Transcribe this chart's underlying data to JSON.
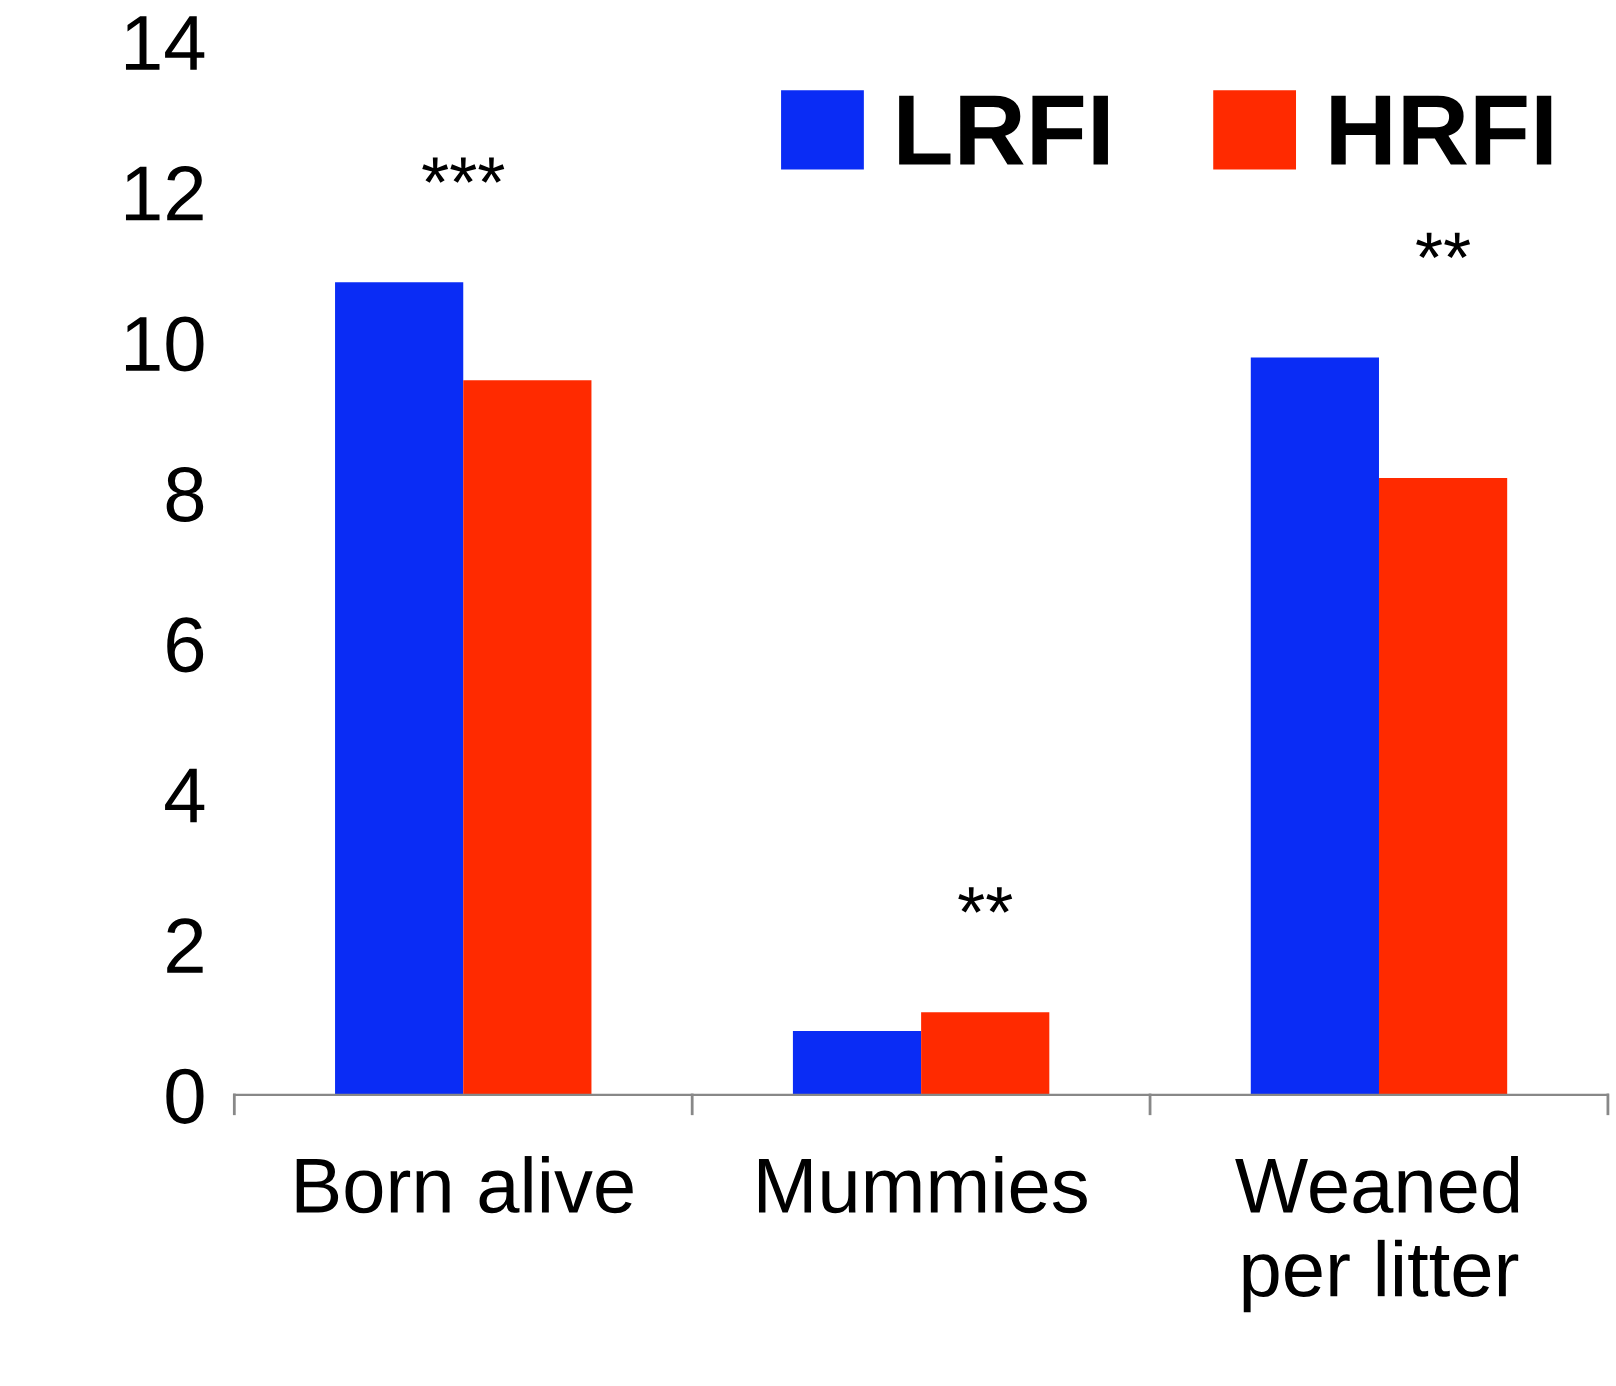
{
  "chart_data": {
    "type": "bar",
    "categories": [
      "Born alive",
      "Mummies",
      "Weaned\nper litter"
    ],
    "series": [
      {
        "name": "LRFI",
        "color": "#0a2cf5",
        "values": [
          10.8,
          0.85,
          9.8
        ]
      },
      {
        "name": "HRFI",
        "color": "#ff2a00",
        "values": [
          9.5,
          1.1,
          8.2
        ]
      }
    ],
    "ylim": [
      0,
      14
    ],
    "yticks": [
      0,
      2,
      4,
      6,
      8,
      10,
      12,
      14
    ],
    "grid": false,
    "legend": "top right",
    "annotations": [
      "***",
      "**",
      "**"
    ]
  }
}
